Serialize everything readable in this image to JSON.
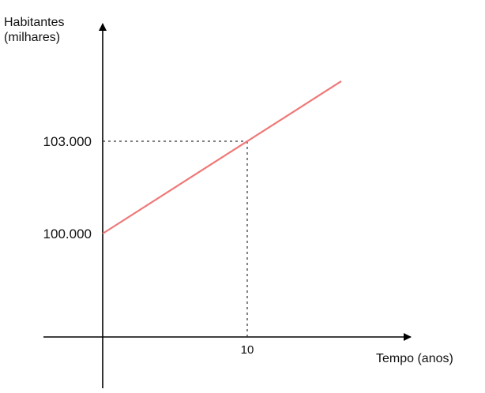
{
  "chart_data": {
    "type": "line",
    "title": "",
    "ylabel_lines": [
      "Habitantes",
      "(milhares)"
    ],
    "xlabel": "Tempo (anos)",
    "x_ticks": [
      {
        "value": 10,
        "label": "10"
      }
    ],
    "y_ticks": [
      {
        "value": 100000,
        "label": "100.000"
      },
      {
        "value": 103000,
        "label": "103.000"
      }
    ],
    "series": [
      {
        "color": "#f07878",
        "points": [
          {
            "x": 0,
            "y": 100000
          },
          {
            "x": 16.5,
            "y": 104950
          }
        ]
      }
    ],
    "reference_point": {
      "x": 10,
      "y": 103000
    },
    "grid": false
  }
}
